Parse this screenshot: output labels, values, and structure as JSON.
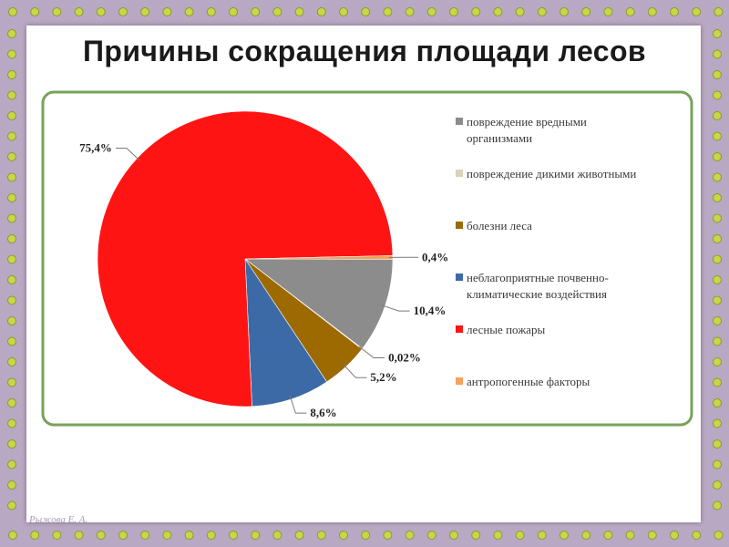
{
  "slide": {
    "title": "Причины сокращения площади лесов",
    "author": "Рыжова Е. А.",
    "frame_color": "#b9a8c4",
    "dot_color": "#c8d64a"
  },
  "chart_data": {
    "type": "pie",
    "title": "",
    "legend_position": "right",
    "slices": [
      {
        "name": "повреждение вредными организмами",
        "legend_lines": [
          "повреждение вредными",
          "организмами"
        ],
        "value": 10.4,
        "label": "10,4%",
        "color": "#8c8c8c"
      },
      {
        "name": "повреждение дикими животными",
        "legend_lines": [
          "повреждение дикими животными"
        ],
        "value": 0.02,
        "label": "0,02%",
        "color": "#d9d3b8"
      },
      {
        "name": "болезни леса",
        "legend_lines": [
          "болезни леса"
        ],
        "value": 5.2,
        "label": "5,2%",
        "color": "#9c6a00"
      },
      {
        "name": "неблагоприятные почвенно-климатические воздействия",
        "legend_lines": [
          "неблагоприятные почвенно-",
          "климатические воздействия"
        ],
        "value": 8.6,
        "label": "8,6%",
        "color": "#3c6aa6"
      },
      {
        "name": "лесные пожары",
        "legend_lines": [
          "лесные пожары"
        ],
        "value": 75.4,
        "label": "75,4%",
        "color": "#ff1414"
      },
      {
        "name": "антропогенные факторы",
        "legend_lines": [
          "антропогенные факторы"
        ],
        "value": 0.4,
        "label": "0,4%",
        "color": "#f5a35a"
      }
    ]
  }
}
